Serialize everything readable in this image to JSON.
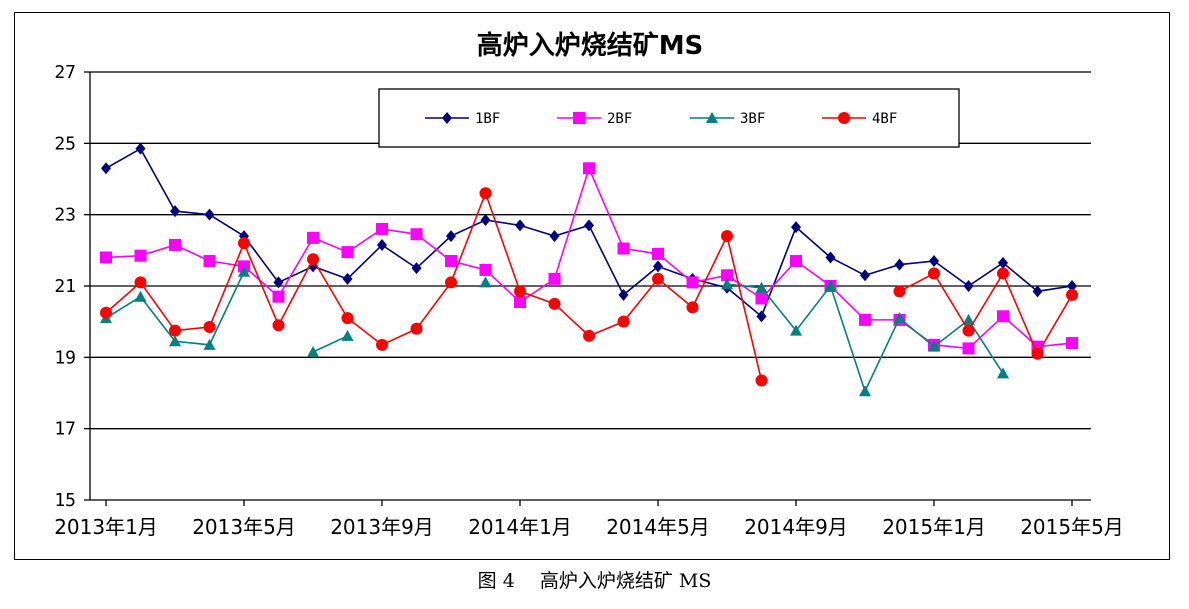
{
  "caption": "图 4　 高炉入炉烧结矿 MS",
  "chart_data": {
    "type": "line",
    "title": "高炉入炉烧结矿MS",
    "xlabel": "",
    "ylabel": "",
    "ylim": [
      15,
      27
    ],
    "yticks": [
      15,
      17,
      19,
      21,
      23,
      25,
      27
    ],
    "grid": true,
    "legend_position": "top-center",
    "x_tick_labels": [
      "2013年1月",
      "2013年5月",
      "2013年9月",
      "2014年1月",
      "2014年5月",
      "2014年9月",
      "2015年1月",
      "2015年5月"
    ],
    "x_tick_positions": [
      0,
      4,
      8,
      12,
      16,
      20,
      24,
      28
    ],
    "series": [
      {
        "name": "1BF",
        "color": "#000080",
        "marker": "diamond",
        "values": [
          24.3,
          24.85,
          23.1,
          23.0,
          22.4,
          21.1,
          21.55,
          21.2,
          22.15,
          21.5,
          22.4,
          22.85,
          22.7,
          22.4,
          22.7,
          20.75,
          21.55,
          21.2,
          20.95,
          20.15,
          22.65,
          21.8,
          21.3,
          21.6,
          21.7,
          21.0,
          21.65,
          20.85,
          21.0
        ]
      },
      {
        "name": "2BF",
        "color": "#FF00FF",
        "marker": "square",
        "values": [
          21.8,
          21.85,
          22.15,
          21.7,
          21.55,
          20.7,
          22.35,
          21.95,
          22.6,
          22.45,
          21.7,
          21.45,
          20.55,
          21.2,
          24.3,
          22.05,
          21.9,
          21.1,
          21.3,
          20.65,
          21.7,
          21.0,
          20.05,
          20.05,
          19.35,
          19.25,
          20.15,
          19.3,
          19.4
        ]
      },
      {
        "name": "3BF",
        "color": "#008080",
        "marker": "triangle",
        "values": [
          20.1,
          20.7,
          19.45,
          19.35,
          21.4,
          null,
          19.15,
          19.6,
          null,
          null,
          null,
          21.1,
          null,
          null,
          null,
          null,
          null,
          null,
          21.05,
          20.95,
          19.75,
          21.0,
          18.05,
          20.1,
          19.3,
          20.05,
          18.55,
          null,
          null
        ]
      },
      {
        "name": "4BF",
        "color": "#FF0000",
        "marker": "circle",
        "values": [
          20.25,
          21.1,
          19.75,
          19.85,
          22.2,
          19.9,
          21.75,
          20.1,
          19.35,
          19.8,
          21.1,
          23.6,
          20.85,
          20.5,
          19.6,
          20.0,
          21.2,
          20.4,
          22.4,
          18.35,
          null,
          null,
          null,
          20.85,
          21.35,
          19.75,
          21.35,
          19.1,
          20.75
        ]
      }
    ]
  }
}
